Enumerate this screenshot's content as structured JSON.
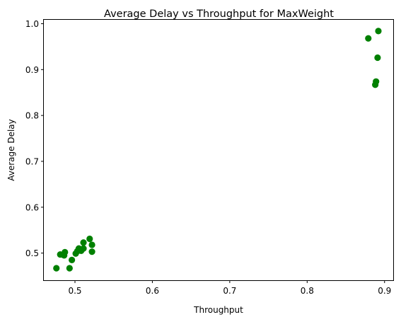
{
  "chart_data": {
    "type": "scatter",
    "title": "Average Delay vs Throughput for MaxWeight",
    "xlabel": "Throughput",
    "ylabel": "Average Delay",
    "xlim": [
      0.4598,
      0.9112
    ],
    "ylim": [
      0.4408,
      1.0085
    ],
    "xticks": [
      0.5,
      0.6,
      0.7,
      0.8,
      0.9
    ],
    "yticks": [
      0.5,
      0.6,
      0.7,
      0.8,
      0.9,
      1.0
    ],
    "xtick_labels": [
      "0.5",
      "0.6",
      "0.7",
      "0.8",
      "0.9"
    ],
    "ytick_labels": [
      "0.5",
      "0.6",
      "0.7",
      "0.8",
      "0.9",
      "1.0"
    ],
    "marker_color": "#008000",
    "grid": false,
    "points": [
      {
        "x": 0.476,
        "y": 0.467
      },
      {
        "x": 0.481,
        "y": 0.497
      },
      {
        "x": 0.486,
        "y": 0.495
      },
      {
        "x": 0.487,
        "y": 0.502
      },
      {
        "x": 0.493,
        "y": 0.467
      },
      {
        "x": 0.496,
        "y": 0.485
      },
      {
        "x": 0.501,
        "y": 0.499
      },
      {
        "x": 0.503,
        "y": 0.504
      },
      {
        "x": 0.505,
        "y": 0.51
      },
      {
        "x": 0.508,
        "y": 0.505
      },
      {
        "x": 0.511,
        "y": 0.51
      },
      {
        "x": 0.511,
        "y": 0.523
      },
      {
        "x": 0.519,
        "y": 0.531
      },
      {
        "x": 0.522,
        "y": 0.518
      },
      {
        "x": 0.522,
        "y": 0.503
      },
      {
        "x": 0.879,
        "y": 0.968
      },
      {
        "x": 0.888,
        "y": 0.867
      },
      {
        "x": 0.889,
        "y": 0.874
      },
      {
        "x": 0.891,
        "y": 0.926
      },
      {
        "x": 0.892,
        "y": 0.984
      }
    ]
  }
}
